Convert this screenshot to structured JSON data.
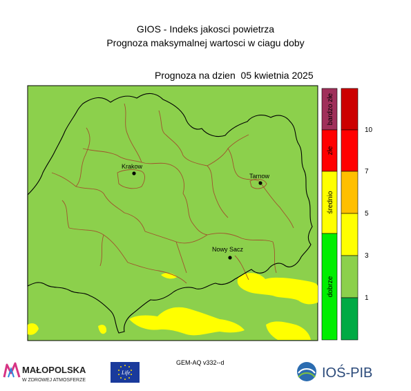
{
  "header": {
    "title_line1": "GIOS - Indeks jakosci powietrza",
    "title_line2": "Prognoza maksymalnej wartosci w ciagu doby",
    "forecast_date": "Prognoza na dzien  05 kwietnia 2025"
  },
  "map": {
    "cities": [
      {
        "name": "Krakow"
      },
      {
        "name": "Tarnow"
      },
      {
        "name": "Nowy Sacz"
      }
    ],
    "colors": {
      "background_green": "#8cd04c",
      "moderate_yellow": "#ffff00",
      "border_black": "#000000",
      "county_border": "#a0522d"
    }
  },
  "legend_categories": [
    {
      "label": "bardzo złe",
      "color": "#a0305a"
    },
    {
      "label": "złe",
      "color": "#ff0000"
    },
    {
      "label": "średnio",
      "color": "#ffff00"
    },
    {
      "label": "dobrze",
      "color": "#00ee00"
    }
  ],
  "colorbar": {
    "colors_top_to_bottom": [
      "#cc0000",
      "#ff0000",
      "#ffbf00",
      "#ffff00",
      "#8cd04c",
      "#00aa44"
    ],
    "ticks": [
      "10",
      "7",
      "5",
      "3",
      "1"
    ]
  },
  "footer": {
    "model_label": "GEM-AQ v332--d",
    "malopolska_name": "MAŁOPOLSKA",
    "malopolska_slogan": "W ZDROWEJ ATMOSFERZE",
    "eu_life_text": "Life",
    "ios_name": "IOŚ-PIB"
  }
}
